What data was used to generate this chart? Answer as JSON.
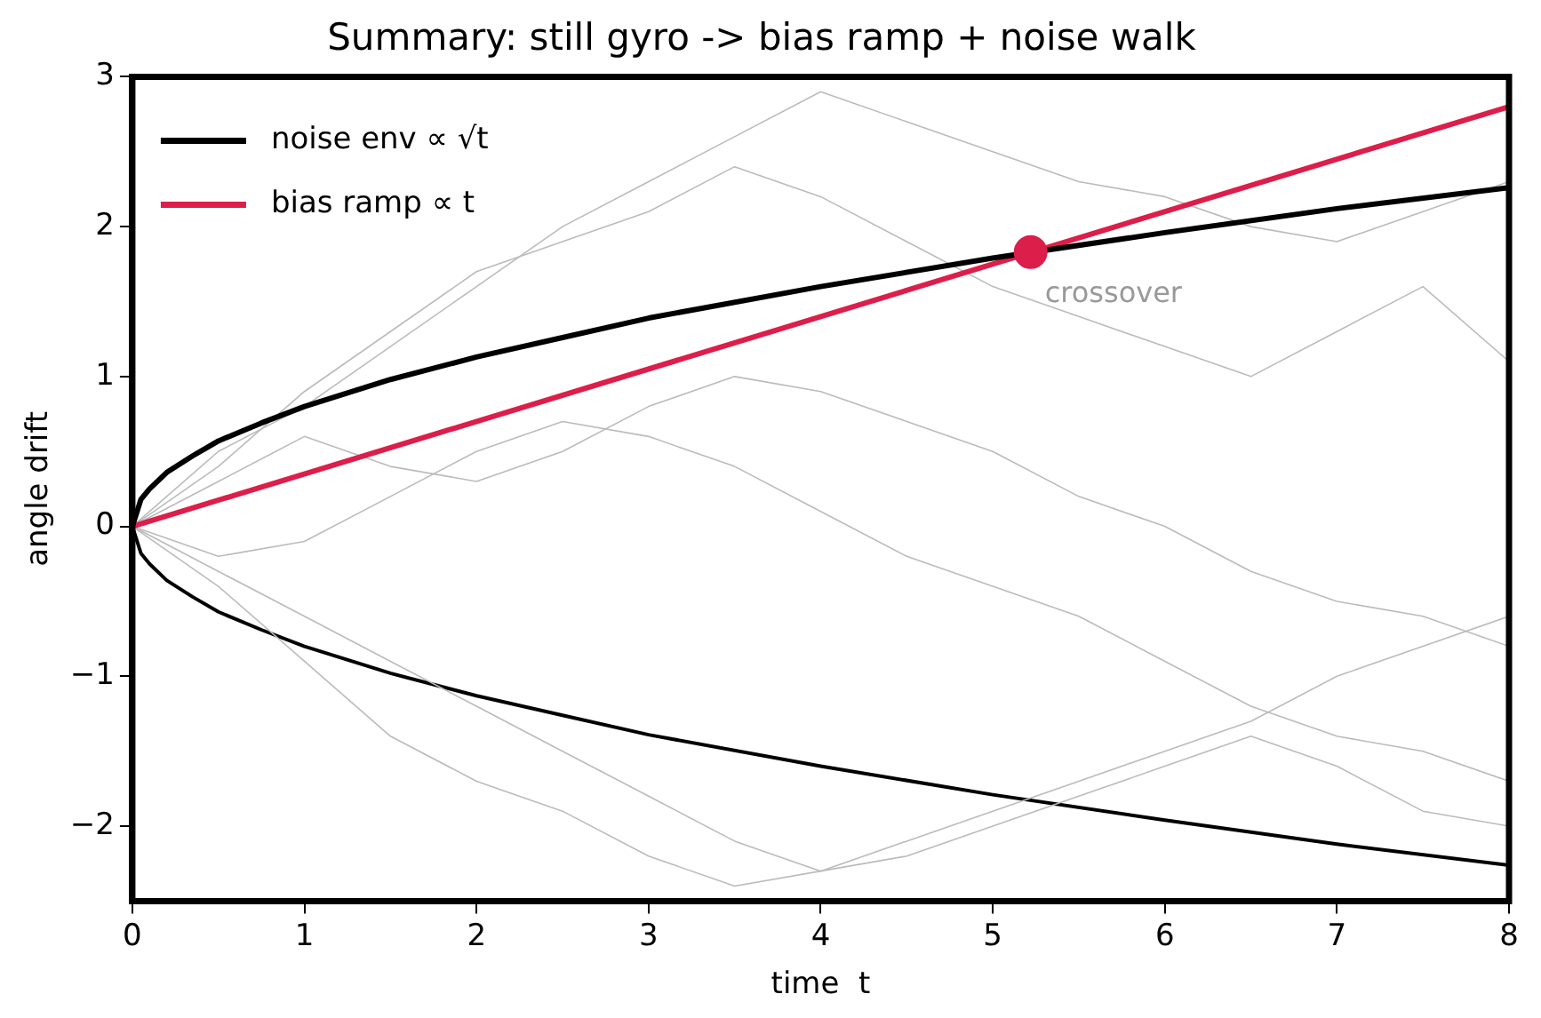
{
  "chart_data": {
    "type": "line",
    "title": "Summary: still gyro -> bias ramp + noise walk",
    "xlabel": "time  t",
    "ylabel": "angle drift",
    "x": [
      0,
      0.5,
      1,
      1.5,
      2,
      2.5,
      3,
      3.5,
      4,
      4.5,
      5,
      5.5,
      6,
      6.5,
      7,
      7.5,
      8
    ],
    "series": [
      {
        "color": "#bbbbbb",
        "values": [
          0,
          0.5,
          0.8,
          1.2,
          1.6,
          2.0,
          2.3,
          2.6,
          2.9,
          2.7,
          2.5,
          2.3,
          2.2,
          2.0,
          1.9,
          2.1,
          2.3
        ]
      },
      {
        "color": "#bbbbbb",
        "values": [
          0,
          -0.3,
          -0.6,
          -0.9,
          -1.2,
          -1.5,
          -1.8,
          -2.1,
          -2.3,
          -2.2,
          -2.0,
          -1.8,
          -1.6,
          -1.4,
          -1.6,
          -1.9,
          -2.0
        ]
      },
      {
        "color": "#bbbbbb",
        "values": [
          0,
          0.3,
          0.6,
          0.4,
          0.3,
          0.5,
          0.8,
          1.0,
          0.9,
          0.7,
          0.5,
          0.2,
          0.0,
          -0.3,
          -0.5,
          -0.6,
          -0.8
        ]
      },
      {
        "color": "#bbbbbb",
        "values": [
          0,
          -0.2,
          -0.1,
          0.2,
          0.5,
          0.7,
          0.6,
          0.4,
          0.1,
          -0.2,
          -0.4,
          -0.6,
          -0.9,
          -1.2,
          -1.4,
          -1.5,
          -1.7
        ]
      },
      {
        "color": "#bbbbbb",
        "values": [
          0,
          0.4,
          0.9,
          1.3,
          1.7,
          1.9,
          2.1,
          2.4,
          2.2,
          1.9,
          1.6,
          1.4,
          1.2,
          1.0,
          1.3,
          1.6,
          1.1
        ]
      },
      {
        "color": "#bbbbbb",
        "values": [
          0,
          -0.4,
          -0.9,
          -1.4,
          -1.7,
          -1.9,
          -2.2,
          -2.4,
          -2.3,
          -2.1,
          -1.9,
          -1.7,
          -1.5,
          -1.3,
          -1.0,
          -0.8,
          -0.6
        ]
      },
      {
        "name": "noise env ∝ √t",
        "color": "#000000",
        "x": [
          0,
          0.05,
          0.1,
          0.2,
          0.35,
          0.5,
          0.75,
          1,
          1.5,
          2,
          2.5,
          3,
          4,
          5,
          6,
          7,
          8
        ],
        "values": [
          0,
          0.18,
          0.25,
          0.36,
          0.47,
          0.57,
          0.69,
          0.8,
          0.98,
          1.13,
          1.26,
          1.39,
          1.6,
          1.79,
          1.96,
          2.12,
          2.26
        ]
      },
      {
        "color": "#000000",
        "x": [
          0,
          0.05,
          0.1,
          0.2,
          0.35,
          0.5,
          0.75,
          1,
          1.5,
          2,
          2.5,
          3,
          4,
          5,
          6,
          7,
          8
        ],
        "values": [
          0,
          -0.18,
          -0.25,
          -0.36,
          -0.47,
          -0.57,
          -0.69,
          -0.8,
          -0.98,
          -1.13,
          -1.26,
          -1.39,
          -1.6,
          -1.79,
          -1.96,
          -2.12,
          -2.26
        ]
      },
      {
        "name": "bias ramp ∝ t",
        "color": "#dc1e4b",
        "x": [
          0,
          8
        ],
        "values": [
          0,
          2.8
        ]
      },
      {
        "type": "scatter",
        "color": "#dc1e4b",
        "x": [
          5.22
        ],
        "values": [
          1.83
        ]
      }
    ],
    "annotations": [
      {
        "text": "crossover",
        "x": 5.22,
        "y": 1.83
      }
    ],
    "xlim": [
      0,
      8
    ],
    "ylim": [
      -2.5,
      3
    ],
    "xticks": [
      0,
      1,
      2,
      3,
      4,
      5,
      6,
      7,
      8
    ],
    "yticks": [
      -2,
      -1,
      0,
      1,
      2,
      3
    ],
    "grid": false,
    "legend": "top left"
  }
}
